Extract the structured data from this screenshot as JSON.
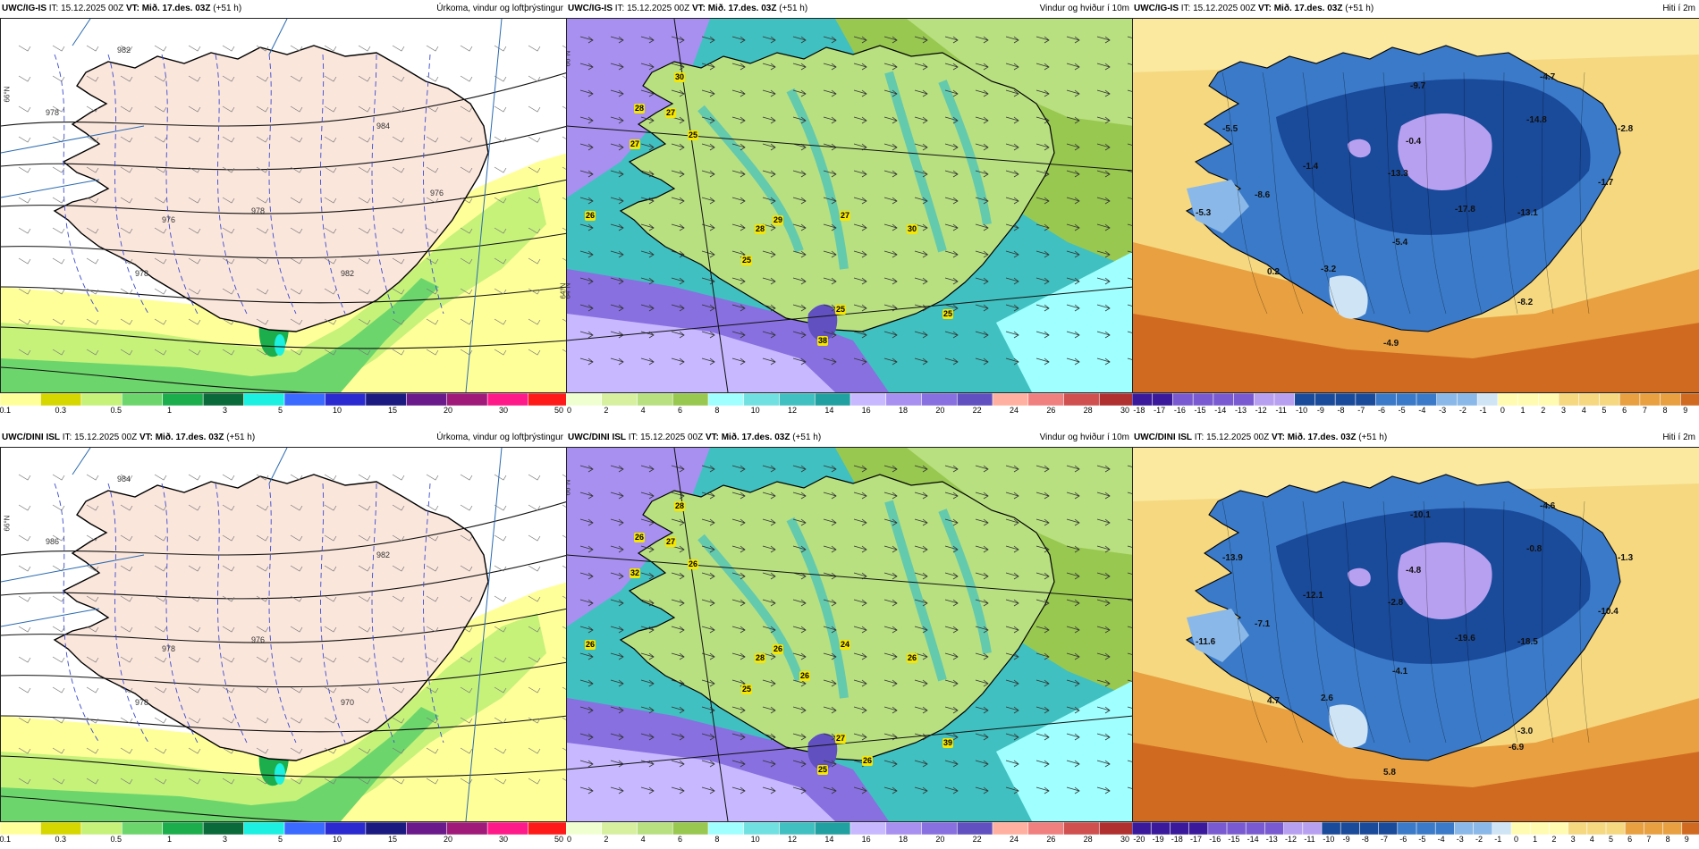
{
  "panels": [
    {
      "id": "top-precip",
      "title": {
        "model": "UWC/IG-IS",
        "it": " IT: 15.12.2025 00Z ",
        "vt_label": "VT:",
        "vt": " Mið. 17.des. 03Z",
        "lead": " (+51 h)",
        "product": "Úrkoma, vindur og loftþrýstingur"
      },
      "legend": {
        "colors": [
          "#ffff9a",
          "#d6d600",
          "#c6f27a",
          "#6cd66c",
          "#1cae4c",
          "#0a6a3a",
          "#1cf0e0",
          "#3a6aff",
          "#2a2ad0",
          "#1a1a80",
          "#6a1a8a",
          "#a01a7a",
          "#ff1a8a",
          "#ff1a1a"
        ],
        "ticks": [
          "0.1",
          "0.3",
          "0.5",
          "1",
          "3",
          "5",
          "10",
          "15",
          "20",
          "30",
          "50"
        ]
      },
      "labels": {
        "isobars": [
          "982",
          "978",
          "984",
          "976",
          "978",
          "982",
          "978",
          "976"
        ],
        "lat": [
          "66°N",
          "64°N"
        ]
      }
    },
    {
      "id": "top-wind",
      "title": {
        "model": "UWC/IG-IS",
        "it": " IT: 15.12.2025 00Z ",
        "vt_label": "VT:",
        "vt": " Mið. 17.des. 03Z",
        "lead": " (+51 h)",
        "product": "Vindur og hviður í 10m"
      },
      "legend": {
        "colors": [
          "#f0ffd0",
          "#d6f0a0",
          "#b8e080",
          "#98c850",
          "#a0ffff",
          "#70e0e0",
          "#40c0c0",
          "#20a0a0",
          "#c8b8ff",
          "#a890f0",
          "#8870e0",
          "#6050c0",
          "#ffb0a0",
          "#f08080",
          "#d05050",
          "#b03030"
        ],
        "ticks": [
          "0",
          "2",
          "4",
          "6",
          "8",
          "10",
          "12",
          "14",
          "16",
          "18",
          "20",
          "22",
          "24",
          "26",
          "28",
          "30"
        ]
      },
      "labels": {
        "gusts": [
          "30",
          "28",
          "27",
          "25",
          "27",
          "26",
          "28",
          "29",
          "27",
          "30",
          "25",
          "25",
          "38",
          "25"
        ],
        "lat": [
          "66°N",
          "64°N"
        ]
      }
    },
    {
      "id": "top-temp",
      "title": {
        "model": "UWC/IG-IS",
        "it": " IT: 15.12.2025 00Z ",
        "vt_label": "VT:",
        "vt": " Mið. 17.des. 03Z",
        "lead": " (+51 h)",
        "product": "Hiti í 2m"
      },
      "legend": {
        "ticks": [
          "-18",
          "-17",
          "-16",
          "-15",
          "-14",
          "-13",
          "-12",
          "-11",
          "-10",
          "-9",
          "-8",
          "-7",
          "-6",
          "-5",
          "-4",
          "-3",
          "-2",
          "-1",
          "0",
          "1",
          "2",
          "3",
          "4",
          "5",
          "6",
          "7",
          "8",
          "9"
        ]
      },
      "labels": {
        "temps": [
          "-4.7",
          "-9.7",
          "-5.5",
          "-0.4",
          "-14.8",
          "-2.8",
          "-1.4",
          "-13.3",
          "-8.6",
          "-1.7",
          "-5.3",
          "-17.8",
          "-13.1",
          "-5.4",
          "0.2",
          "-3.2",
          "-8.2",
          "-4.9"
        ]
      }
    },
    {
      "id": "bottom-precip",
      "title": {
        "model": "UWC/DINI ISL",
        "it": " IT: 15.12.2025 00Z ",
        "vt_label": "VT:",
        "vt": " Mið. 17.des. 03Z",
        "lead": " (+51 h)",
        "product": "Úrkoma, vindur og loftþrýstingur"
      },
      "legend": {
        "colors": [
          "#ffff9a",
          "#d6d600",
          "#c6f27a",
          "#6cd66c",
          "#1cae4c",
          "#0a6a3a",
          "#1cf0e0",
          "#3a6aff",
          "#2a2ad0",
          "#1a1a80",
          "#6a1a8a",
          "#a01a7a",
          "#ff1a8a",
          "#ff1a1a"
        ],
        "ticks": [
          "0.1",
          "0.3",
          "0.5",
          "1",
          "3",
          "5",
          "10",
          "15",
          "20",
          "30",
          "50"
        ]
      },
      "labels": {
        "isobars": [
          "984",
          "986",
          "982",
          "978",
          "976",
          "970",
          "978"
        ],
        "lat": [
          "66°N"
        ]
      }
    },
    {
      "id": "bottom-wind",
      "title": {
        "model": "UWC/DINI ISL",
        "it": " IT: 15.12.2025 00Z ",
        "vt_label": "VT:",
        "vt": " Mið. 17.des. 03Z",
        "lead": " (+51 h)",
        "product": "Vindur og hviður í 10m"
      },
      "legend": {
        "colors": [
          "#f0ffd0",
          "#d6f0a0",
          "#b8e080",
          "#98c850",
          "#a0ffff",
          "#70e0e0",
          "#40c0c0",
          "#20a0a0",
          "#c8b8ff",
          "#a890f0",
          "#8870e0",
          "#6050c0",
          "#ffb0a0",
          "#f08080",
          "#d05050",
          "#b03030"
        ],
        "ticks": [
          "0",
          "2",
          "4",
          "6",
          "8",
          "10",
          "12",
          "14",
          "16",
          "18",
          "20",
          "22",
          "24",
          "26",
          "28",
          "30"
        ]
      },
      "labels": {
        "gusts": [
          "28",
          "26",
          "27",
          "26",
          "32",
          "26",
          "28",
          "26",
          "24",
          "26",
          "25",
          "39",
          "25",
          "27",
          "26",
          "26"
        ],
        "lat": [
          "66°N"
        ]
      }
    },
    {
      "id": "bottom-temp",
      "title": {
        "model": "UWC/DINI ISL",
        "it": " IT: 15.12.2025 00Z ",
        "vt_label": "VT:",
        "vt": " Mið. 17.des. 03Z",
        "lead": " (+51 h)",
        "product": "Hiti í 2m"
      },
      "legend": {
        "ticks": [
          "-20",
          "-19",
          "-18",
          "-17",
          "-16",
          "-15",
          "-14",
          "-13",
          "-12",
          "-11",
          "-10",
          "-9",
          "-8",
          "-7",
          "-6",
          "-5",
          "-4",
          "-3",
          "-2",
          "-1",
          "0",
          "1",
          "2",
          "3",
          "4",
          "5",
          "6",
          "7",
          "8",
          "9"
        ]
      },
      "labels": {
        "temps": [
          "-4.6",
          "-10.1",
          "-13.9",
          "-4.8",
          "-0.8",
          "-1.3",
          "-12.1",
          "-2.8",
          "-7.1",
          "-10.4",
          "-11.6",
          "-19.6",
          "-18.5",
          "-4.1",
          "4.7",
          "2.6",
          "-3.0",
          "5.8",
          "-6.9"
        ]
      }
    }
  ]
}
